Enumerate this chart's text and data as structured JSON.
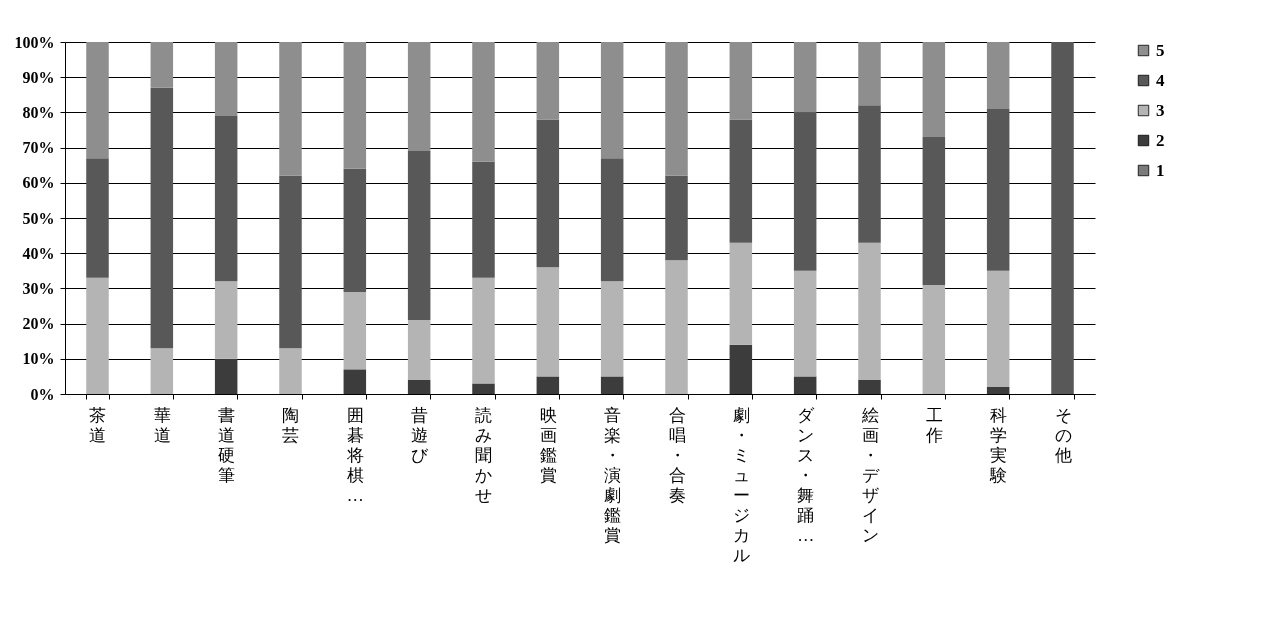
{
  "chart_data": {
    "type": "bar",
    "stacked": true,
    "categories": [
      "茶道",
      "華道",
      "書道硬筆",
      "陶芸",
      "囲碁将棋…",
      "昔遊び",
      "読み聞かせ",
      "映画鑑賞",
      "音楽・演劇鑑賞",
      "合唱・合奏",
      "劇・ミュージカル",
      "ダンス・舞踊…",
      "絵画・デザイン",
      "工作",
      "科学実験",
      "その他"
    ],
    "series": [
      {
        "name": "1",
        "color": "#7a7a7a",
        "values": [
          0,
          0,
          0,
          0,
          0,
          0,
          0,
          0,
          0,
          0,
          0,
          0,
          0,
          0,
          0,
          0
        ]
      },
      {
        "name": "2",
        "color": "#3c3c3c",
        "values": [
          0,
          0,
          10,
          0,
          7,
          4,
          3,
          5,
          5,
          0,
          14,
          5,
          4,
          0,
          2,
          0
        ]
      },
      {
        "name": "3",
        "color": "#b4b4b4",
        "values": [
          33,
          13,
          22,
          13,
          22,
          17,
          30,
          31,
          27,
          38,
          29,
          30,
          39,
          31,
          33,
          0
        ]
      },
      {
        "name": "4",
        "color": "#585858",
        "values": [
          34,
          74,
          47,
          49,
          35,
          48,
          33,
          42,
          35,
          24,
          35,
          45,
          39,
          42,
          46,
          100
        ]
      },
      {
        "name": "5",
        "color": "#8e8e8e",
        "values": [
          33,
          13,
          21,
          38,
          36,
          31,
          34,
          22,
          33,
          38,
          22,
          20,
          18,
          27,
          19,
          0
        ]
      }
    ],
    "ylim": [
      0,
      100
    ],
    "yticks": [
      {
        "value": 0,
        "label": "0%"
      },
      {
        "value": 10,
        "label": "10%"
      },
      {
        "value": 20,
        "label": "20%"
      },
      {
        "value": 30,
        "label": "30%"
      },
      {
        "value": 40,
        "label": "40%"
      },
      {
        "value": 50,
        "label": "50%"
      },
      {
        "value": 60,
        "label": "60%"
      },
      {
        "value": 70,
        "label": "70%"
      },
      {
        "value": 80,
        "label": "80%"
      },
      {
        "value": 90,
        "label": "90%"
      },
      {
        "value": 100,
        "label": "100%"
      }
    ],
    "grid": "y",
    "legend": "right"
  }
}
